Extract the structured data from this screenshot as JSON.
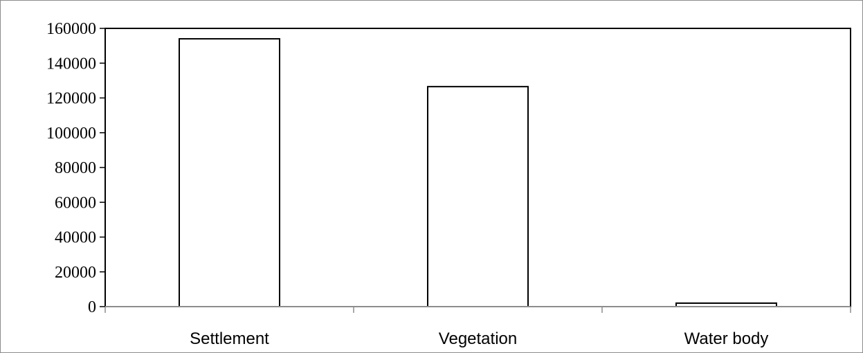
{
  "chart_data": {
    "type": "bar",
    "title": "",
    "xlabel": "",
    "ylabel": "",
    "categories": [
      "Settlement",
      "Vegetation",
      "Water body"
    ],
    "values": [
      154000,
      126500,
      2000
    ],
    "ylim": [
      0,
      160000
    ],
    "yticks": [
      0,
      20000,
      40000,
      60000,
      80000,
      100000,
      120000,
      140000,
      160000
    ],
    "ytick_labels": [
      "0",
      "20000",
      "40000",
      "60000",
      "80000",
      "100000",
      "120000",
      "140000",
      "160000"
    ],
    "grid": false,
    "legend": "none",
    "colors": {
      "bar_fill": "#ffffff",
      "bar_stroke": "#000000",
      "axis": "#000000",
      "frame": "#8c8c8c"
    }
  }
}
